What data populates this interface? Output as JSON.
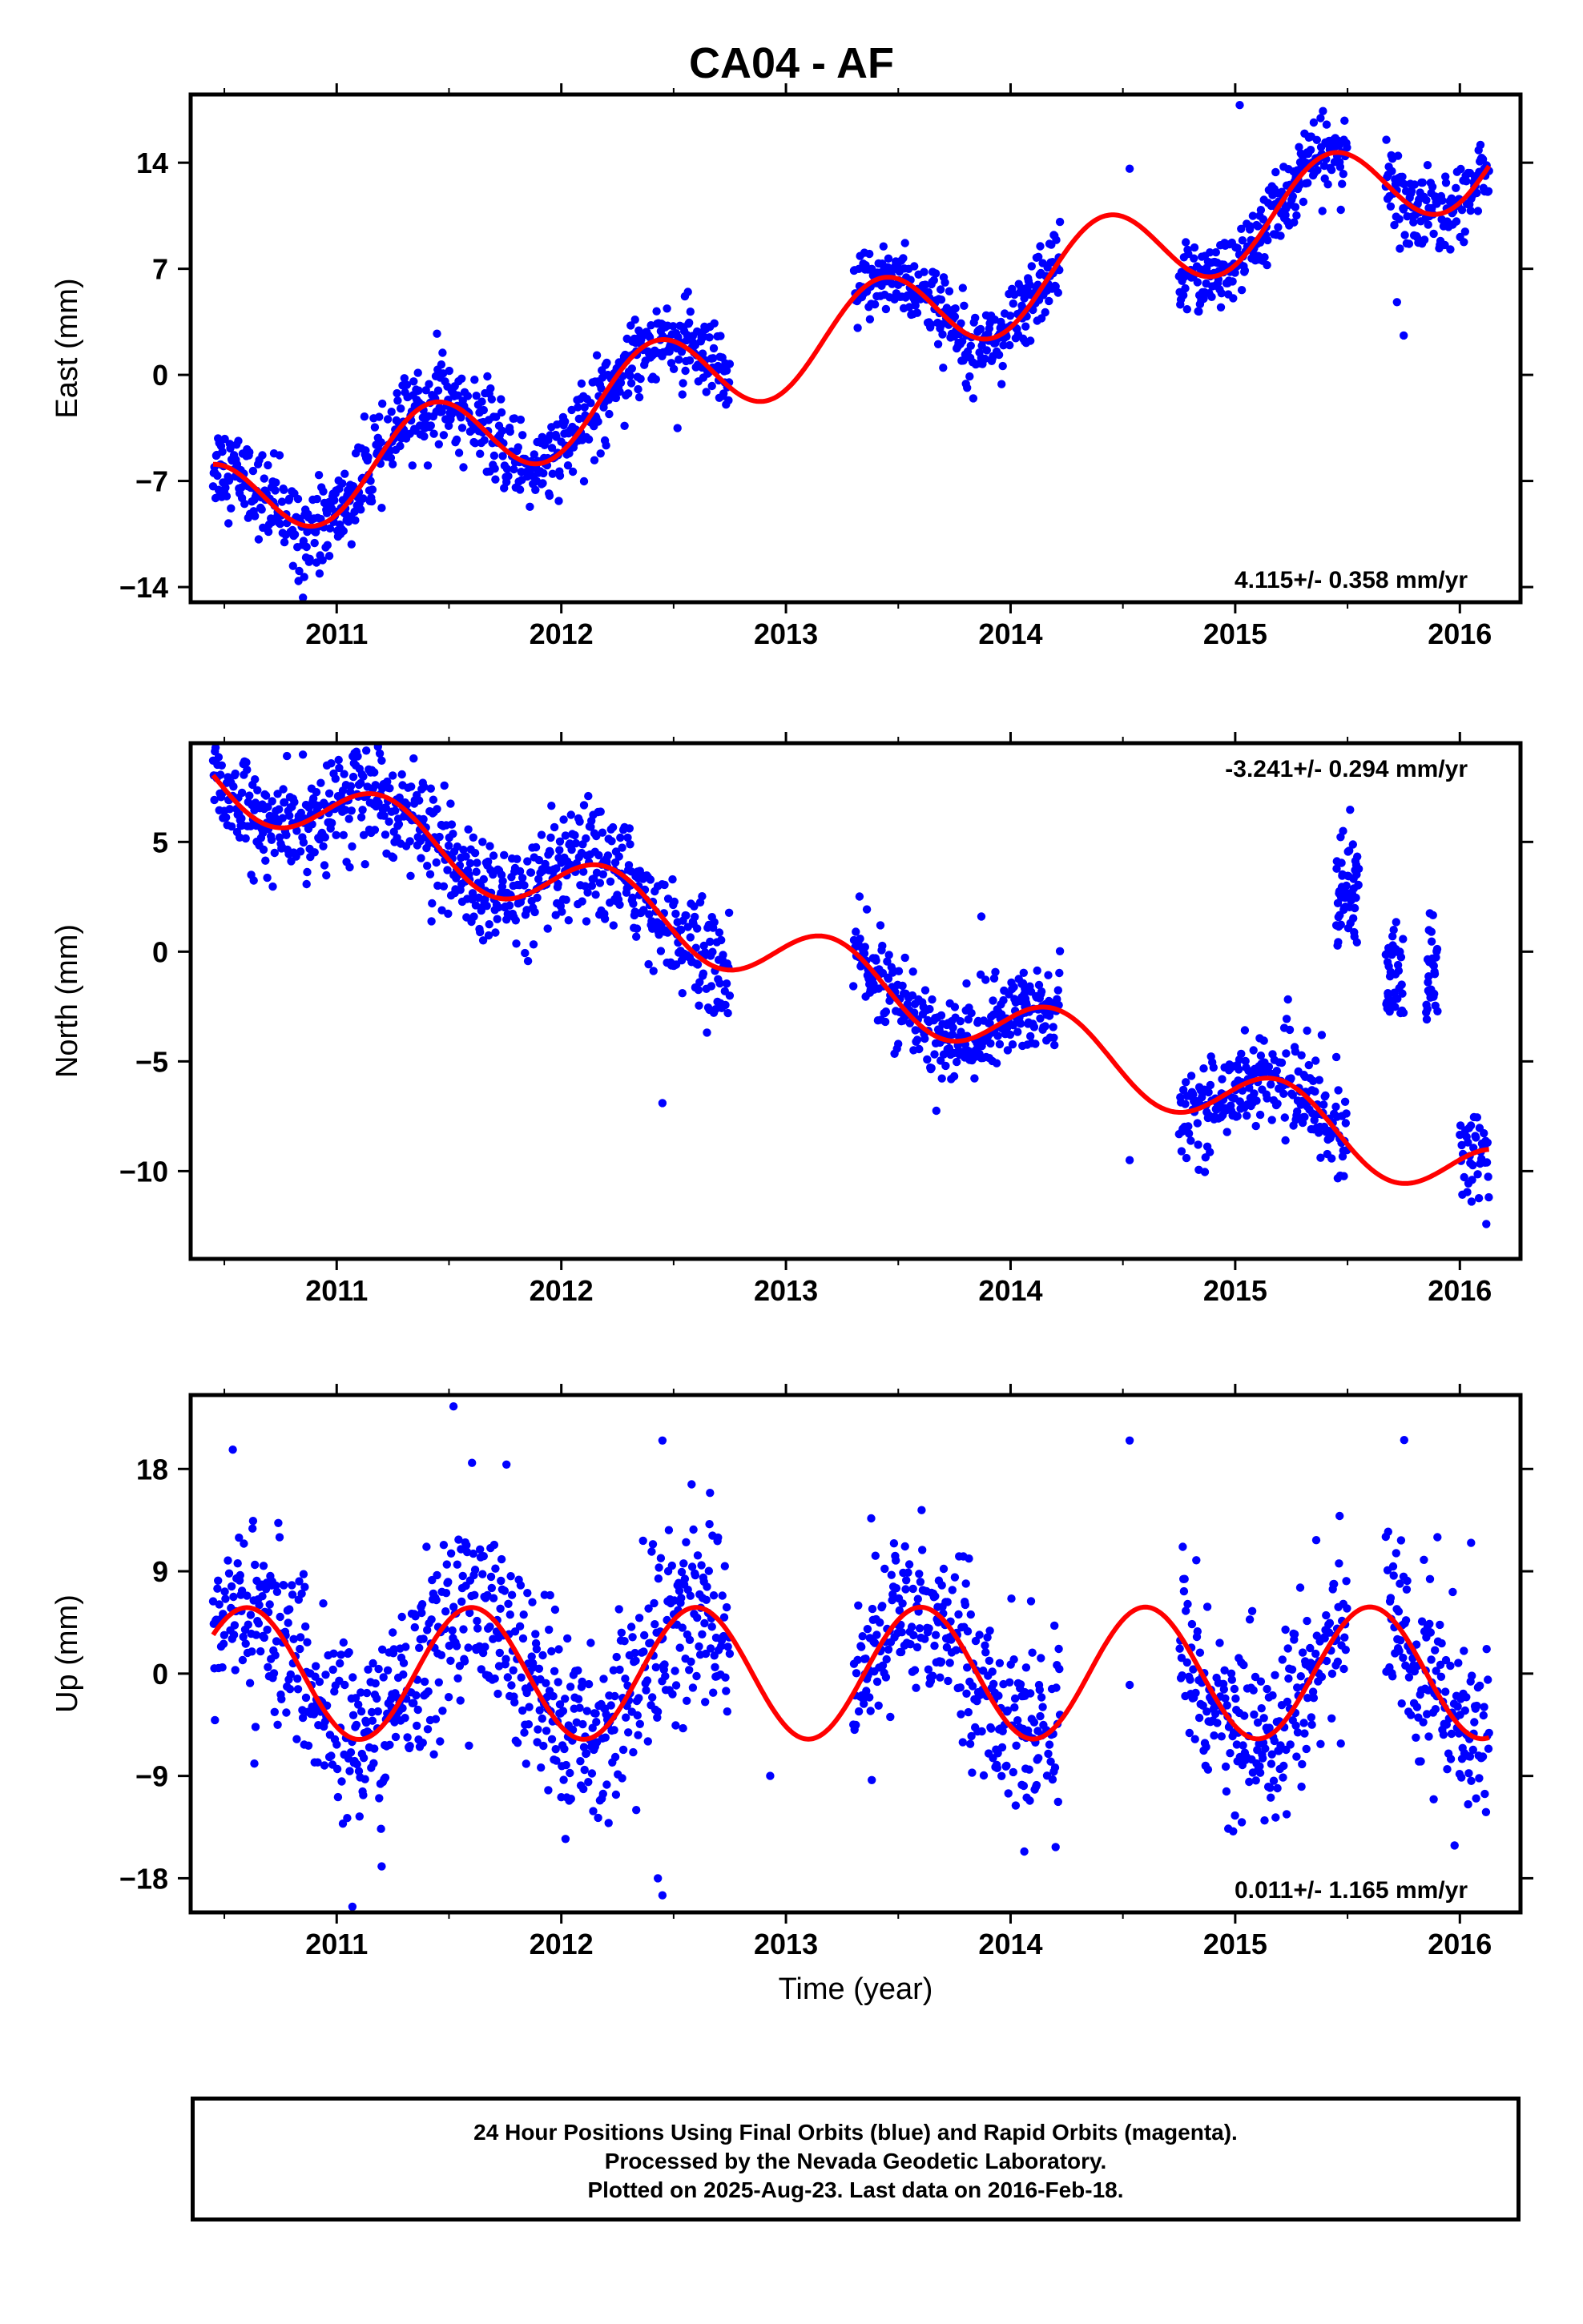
{
  "title": "CA04 - AF",
  "footer": {
    "line1": "24 Hour Positions Using Final Orbits (blue) and Rapid Orbits (magenta).",
    "line2": "Processed by the Nevada Geodetic Laboratory.",
    "line3": "Plotted on 2025-Aug-23. Last data on 2016-Feb-18."
  },
  "colors": {
    "final_orbits": "#0000ff",
    "model": "#ff0000",
    "rapid_orbits": "#ff00ff"
  },
  "chart_data": [
    {
      "type": "scatter",
      "id": "east",
      "title": "",
      "xlabel": "",
      "ylabel": "East (mm)",
      "xlim": [
        2010.35,
        2016.27
      ],
      "ylim": [
        -15,
        18.5
      ],
      "xticks": [
        2011,
        2012,
        2013,
        2014,
        2015,
        2016
      ],
      "yticks": [
        -14,
        -7,
        0,
        7,
        14
      ],
      "rate_label": "4.115+/- 0.358 mm/yr",
      "rate_position": "bottom-right",
      "trend": {
        "rate": 4.115,
        "intercept_2010": -10.7,
        "annual_amp": 3.0,
        "peak_phase": 0.42
      },
      "data_points": "dense daily GPS positions (blue dots) scattered about the red model curve",
      "scatter_segments": [
        [
          2010.45,
          2012.75,
          1.4
        ],
        [
          2013.3,
          2014.07,
          1.2
        ],
        [
          2014.05,
          2014.22,
          1.3
        ],
        [
          2014.75,
          2015.5,
          1.2
        ],
        [
          2015.67,
          2016.13,
          1.3
        ]
      ],
      "outliers": [
        [
          2010.85,
          -14.7
        ],
        [
          2010.83,
          -13.6
        ],
        [
          2014.53,
          13.6
        ],
        [
          2015.75,
          2.6
        ],
        [
          2015.72,
          4.8
        ],
        [
          2015.02,
          17.8
        ]
      ],
      "series": [
        {
          "name": "Final Orbits",
          "color": "#0000ff",
          "kind": "points"
        },
        {
          "name": "Model fit",
          "color": "#ff0000",
          "kind": "line"
        }
      ]
    },
    {
      "type": "scatter",
      "id": "north",
      "title": "",
      "xlabel": "",
      "ylabel": "North (mm)",
      "xlim": [
        2010.35,
        2016.27
      ],
      "ylim": [
        -14,
        9.5
      ],
      "xticks": [
        2011,
        2012,
        2013,
        2014,
        2015,
        2016
      ],
      "yticks": [
        -10,
        -5,
        0,
        5
      ],
      "rate_label": "-3.241+/- 0.294 mm/yr",
      "rate_position": "top-right",
      "trend": {
        "rate": -3.241,
        "intercept_2010": 9.5,
        "annual_amp": 1.5,
        "peak_phase": 0.2
      },
      "data_points": "dense daily GPS positions (blue dots) scattered about the red model curve",
      "scatter_segments": [
        [
          2010.45,
          2012.75,
          1.2
        ],
        [
          2013.3,
          2014.07,
          1.0
        ],
        [
          2014.05,
          2014.22,
          1.1
        ],
        [
          2014.75,
          2015.5,
          1.0
        ],
        [
          2016.0,
          2016.13,
          1.2
        ]
      ],
      "offset_clusters": [
        [
          2015.45,
          2015.55,
          2.5,
          1.2
        ],
        [
          2015.67,
          2015.75,
          -1.0,
          1.5
        ],
        [
          2015.85,
          2015.9,
          -1.0,
          1.3
        ]
      ],
      "outliers": [
        [
          2012.45,
          -6.9
        ],
        [
          2013.87,
          1.6
        ],
        [
          2014.53,
          -9.5
        ],
        [
          2015.45,
          -4.8
        ],
        [
          2015.32,
          -3.6
        ]
      ],
      "series": [
        {
          "name": "Final Orbits",
          "color": "#0000ff",
          "kind": "points"
        },
        {
          "name": "Model fit",
          "color": "#ff0000",
          "kind": "line"
        }
      ]
    },
    {
      "type": "scatter",
      "id": "up",
      "title": "",
      "xlabel": "Time (year)",
      "ylabel": "Up (mm)",
      "xlim": [
        2010.35,
        2016.27
      ],
      "ylim": [
        -21,
        24.5
      ],
      "xticks": [
        2011,
        2012,
        2013,
        2014,
        2015,
        2016
      ],
      "yticks": [
        -18,
        -9,
        0,
        9,
        18
      ],
      "rate_label": "0.011+/- 1.165 mm/yr",
      "rate_position": "bottom-right",
      "trend": {
        "rate": 0.011,
        "intercept_2010": 0.0,
        "annual_amp": 5.8,
        "peak_phase": 0.6
      },
      "data_points": "dense daily GPS positions (blue dots) scattered about the red model curve",
      "scatter_segments": [
        [
          2010.45,
          2012.75,
          4.0
        ],
        [
          2013.3,
          2014.07,
          3.8
        ],
        [
          2014.05,
          2014.22,
          3.8
        ],
        [
          2014.75,
          2015.5,
          4.0
        ],
        [
          2015.67,
          2016.13,
          4.0
        ]
      ],
      "outliers": [
        [
          2011.52,
          23.5
        ],
        [
          2012.45,
          20.5
        ],
        [
          2014.53,
          20.5
        ],
        [
          2011.07,
          -20.5
        ],
        [
          2012.45,
          -19.5
        ],
        [
          2012.43,
          -18.0
        ],
        [
          2012.93,
          -9.0
        ],
        [
          2014.53,
          -1.0
        ],
        [
          2015.9,
          12.0
        ],
        [
          2016.05,
          11.5
        ]
      ],
      "series": [
        {
          "name": "Final Orbits",
          "color": "#0000ff",
          "kind": "points"
        },
        {
          "name": "Model fit",
          "color": "#ff0000",
          "kind": "line"
        }
      ]
    }
  ]
}
